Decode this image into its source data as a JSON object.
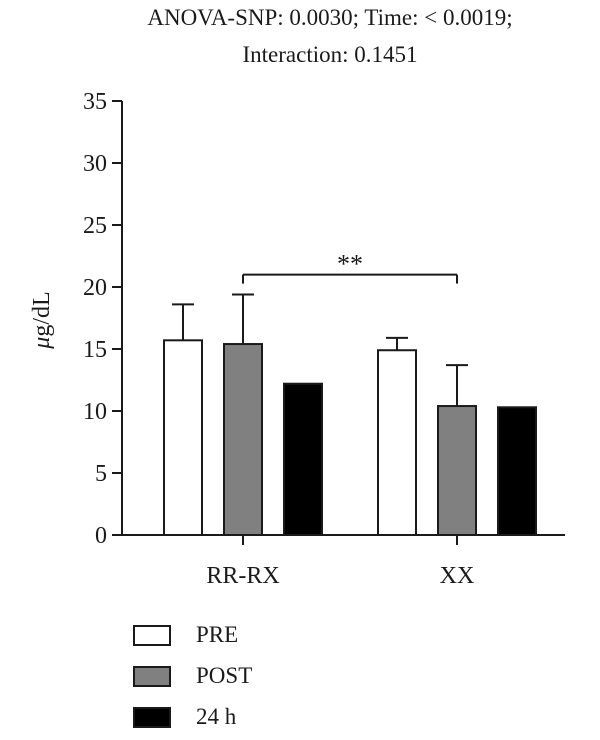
{
  "chart_data": {
    "type": "bar",
    "title_line1": "ANOVA-SNP: 0.0030; Time: < 0.0019;",
    "title_line2": "Interaction: 0.1451",
    "ylabel_unit": "g/dL",
    "ylabel_prefix": "μ",
    "ylim": [
      0,
      35
    ],
    "yticks": [
      0,
      5,
      10,
      15,
      20,
      25,
      30,
      35
    ],
    "categories": [
      "RR-RX",
      "XX"
    ],
    "series": [
      {
        "name": "PRE",
        "color": "#ffffff",
        "values": [
          15.7,
          14.9
        ],
        "errors": [
          2.9,
          1.0
        ]
      },
      {
        "name": "POST",
        "color": "#808080",
        "values": [
          15.4,
          10.4
        ],
        "errors": [
          4.0,
          3.3
        ]
      },
      {
        "name": "24 h",
        "color": "#000000",
        "values": [
          12.2,
          10.3
        ],
        "errors": [
          0,
          0
        ]
      }
    ],
    "annotation": {
      "label": "**",
      "from_category": 0,
      "to_category": 1,
      "y_value": 21.0
    },
    "legend_position": "bottom-left"
  }
}
